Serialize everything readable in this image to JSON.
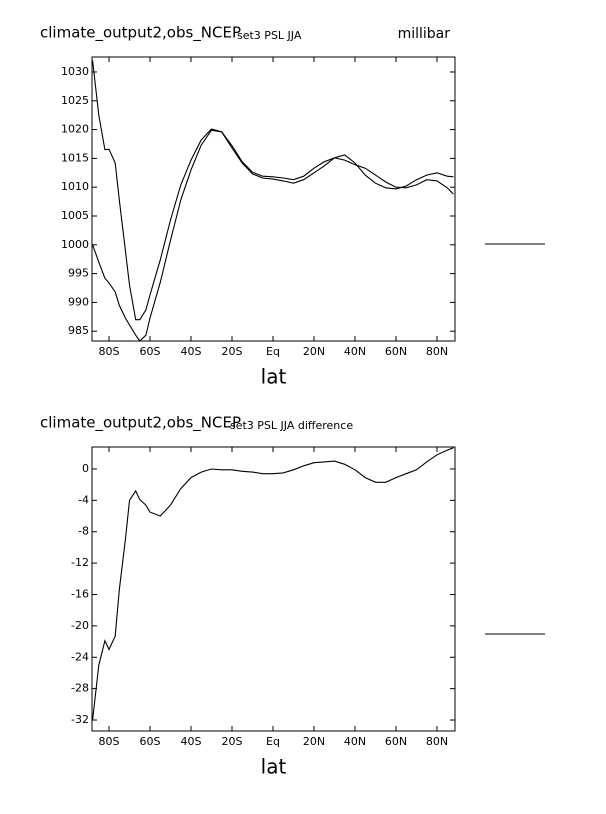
{
  "chart_data": [
    {
      "type": "line",
      "title": "climate_output2,obs_NCEP",
      "subtitle": "set3 PSL JJA",
      "units": "millibar",
      "x_label": "lat",
      "x": [
        -88,
        -85,
        -82,
        -80,
        -77,
        -75,
        -72,
        -70,
        -67,
        -65,
        -62,
        -60,
        -55,
        -50,
        -45,
        -40,
        -35,
        -30,
        -25,
        -20,
        -15,
        -10,
        -5,
        0,
        5,
        10,
        15,
        20,
        25,
        30,
        35,
        40,
        45,
        50,
        55,
        60,
        65,
        70,
        75,
        80,
        85,
        88
      ],
      "series": [
        {
          "color": "#000000",
          "values": [
            1000,
            997,
            994.2,
            993.4,
            991.8,
            989.5,
            987.3,
            986.1,
            984.3,
            983.3,
            984.3,
            987.3,
            993.5,
            1000.8,
            1007.8,
            1013,
            1017.3,
            1019.9,
            1019.6,
            1017.2,
            1014.4,
            1012.6,
            1011.9,
            1011.8,
            1011.6,
            1011.3,
            1011.9,
            1013.3,
            1014.4,
            1015.1,
            1014.7,
            1013.9,
            1013.3,
            1012.1,
            1010.9,
            1010,
            1009.9,
            1010.4,
            1011.3,
            1011.1,
            1009.9,
            1008.8
          ]
        },
        {
          "color": "#000000",
          "values": [
            1032,
            1022.5,
            1016.5,
            1016.6,
            1014.2,
            1007.8,
            999,
            993,
            987,
            987,
            988.7,
            991.3,
            997.4,
            1004.3,
            1010.4,
            1014.7,
            1018.2,
            1020.1,
            1019.6,
            1016.8,
            1014.2,
            1012.3,
            1011.6,
            1011.4,
            1011.1,
            1010.7,
            1011.3,
            1012.5,
            1013.7,
            1015.1,
            1015.6,
            1014.2,
            1012.1,
            1010.7,
            1009.9,
            1009.7,
            1010.2,
            1011.3,
            1012.1,
            1012.5,
            1011.9,
            1011.8
          ]
        }
      ],
      "xlim": [
        -88.3,
        88.8
      ],
      "ylim": [
        983.3,
        1032.6
      ],
      "xticks": [
        {
          "value": -80,
          "label": "80S"
        },
        {
          "value": -60,
          "label": "60S"
        },
        {
          "value": -40,
          "label": "40S"
        },
        {
          "value": -20,
          "label": "20S"
        },
        {
          "value": 0,
          "label": "Eq"
        },
        {
          "value": 20,
          "label": "20N"
        },
        {
          "value": 40,
          "label": "40N"
        },
        {
          "value": 60,
          "label": "60N"
        },
        {
          "value": 80,
          "label": "80N"
        }
      ],
      "yticks": [
        985,
        990,
        995,
        1000,
        1005,
        1010,
        1015,
        1020,
        1025,
        1030
      ]
    },
    {
      "type": "line",
      "title": "climate_output2,obs_NCEP",
      "subtitle": "set3 PSL JJA difference",
      "x_label": "lat",
      "x": [
        -88,
        -85,
        -82,
        -80,
        -77,
        -75,
        -72,
        -70,
        -67,
        -65,
        -62,
        -60,
        -55,
        -50,
        -45,
        -40,
        -35,
        -30,
        -25,
        -20,
        -15,
        -10,
        -5,
        0,
        5,
        10,
        15,
        20,
        25,
        30,
        35,
        40,
        45,
        50,
        55,
        60,
        65,
        70,
        75,
        80,
        85,
        88
      ],
      "series": [
        {
          "color": "#000000",
          "values": [
            -32,
            -25,
            -21.9,
            -23,
            -21.3,
            -15.4,
            -9,
            -4,
            -2.8,
            -3.9,
            -4.6,
            -5.5,
            -6,
            -4.6,
            -2.5,
            -1.1,
            -0.4,
            0,
            -0.1,
            -0.1,
            -0.3,
            -0.4,
            -0.6,
            -0.6,
            -0.5,
            -0.1,
            0.4,
            0.8,
            0.9,
            1.0,
            0.6,
            -0.1,
            -1.1,
            -1.7,
            -1.7,
            -1.1,
            -0.6,
            -0.1,
            0.9,
            1.8,
            2.4,
            2.7
          ]
        }
      ],
      "xlim": [
        -88.3,
        88.8
      ],
      "ylim": [
        -33.4,
        2.8
      ],
      "xticks": [
        {
          "value": -80,
          "label": "80S"
        },
        {
          "value": -60,
          "label": "60S"
        },
        {
          "value": -40,
          "label": "40S"
        },
        {
          "value": -20,
          "label": "20S"
        },
        {
          "value": 0,
          "label": "Eq"
        },
        {
          "value": 20,
          "label": "20N"
        },
        {
          "value": 40,
          "label": "40N"
        },
        {
          "value": 60,
          "label": "60N"
        },
        {
          "value": 80,
          "label": "80N"
        }
      ],
      "yticks": [
        -32,
        -28,
        -24,
        -20,
        -16,
        -12,
        -8,
        -4,
        0
      ]
    }
  ]
}
